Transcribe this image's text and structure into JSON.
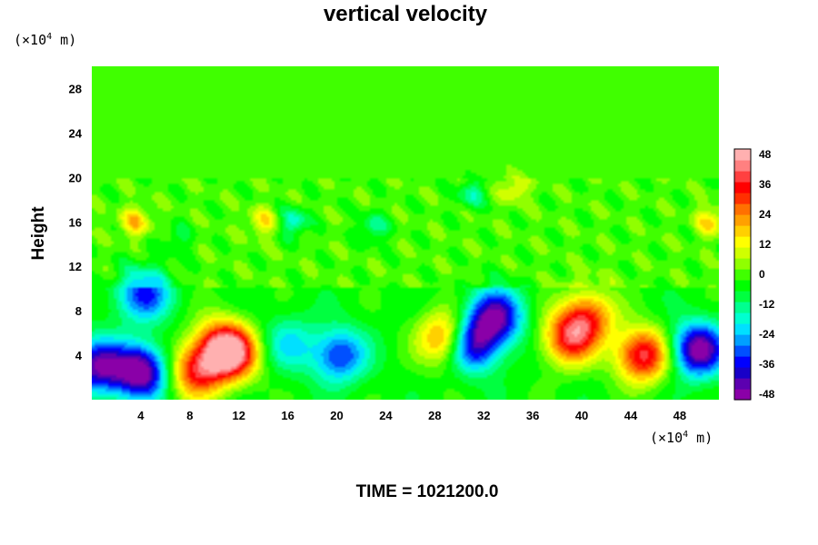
{
  "chart_data": {
    "type": "heatmap",
    "title": "vertical velocity",
    "ylabel": "Height",
    "y_unit": {
      "base": "(×10",
      "exp": "4",
      "rest": " m)"
    },
    "x_unit": {
      "base": "(×10",
      "exp": "4",
      "rest": " m)"
    },
    "xlim": [
      0,
      51.2
    ],
    "ylim": [
      0,
      30
    ],
    "x_ticks": [
      4,
      8,
      12,
      16,
      20,
      24,
      28,
      32,
      36,
      40,
      44,
      48
    ],
    "y_ticks": [
      4,
      8,
      12,
      16,
      20,
      24,
      28
    ],
    "colorbar": {
      "range": [
        -48,
        48
      ],
      "ticks": [
        48,
        36,
        24,
        12,
        0,
        -12,
        -24,
        -36,
        -48
      ]
    },
    "features": [
      {
        "x": 0.5,
        "y": 3.0,
        "value": -40
      },
      {
        "x": 4.0,
        "y": 2.5,
        "value": -48
      },
      {
        "x": 4.2,
        "y": 9.5,
        "value": -30
      },
      {
        "x": 8.5,
        "y": 2.5,
        "value": 36
      },
      {
        "x": 11.5,
        "y": 4.0,
        "value": 40
      },
      {
        "x": 10.5,
        "y": 5.0,
        "value": 30
      },
      {
        "x": 16.0,
        "y": 5.0,
        "value": -16
      },
      {
        "x": 20.2,
        "y": 4.0,
        "value": -30
      },
      {
        "x": 29.0,
        "y": 5.5,
        "value": 36
      },
      {
        "x": 31.0,
        "y": 5.0,
        "value": -44
      },
      {
        "x": 33.0,
        "y": 7.5,
        "value": -40
      },
      {
        "x": 39.0,
        "y": 5.5,
        "value": 36
      },
      {
        "x": 40.5,
        "y": 7.5,
        "value": 30
      },
      {
        "x": 45.0,
        "y": 4.0,
        "value": 44
      },
      {
        "x": 49.5,
        "y": 4.5,
        "value": -46
      },
      {
        "x": 3.5,
        "y": 16.0,
        "value": 18
      },
      {
        "x": 14.0,
        "y": 16.0,
        "value": 14
      },
      {
        "x": 16.5,
        "y": 16.0,
        "value": -18
      },
      {
        "x": 31.0,
        "y": 18.5,
        "value": -14
      },
      {
        "x": 34.5,
        "y": 19.0,
        "value": 12
      },
      {
        "x": 50.5,
        "y": 16.0,
        "value": 16
      },
      {
        "x": 23.0,
        "y": 15.5,
        "value": -14
      },
      {
        "x": 7.0,
        "y": 14.5,
        "value": -8
      }
    ],
    "grid": false,
    "legend": "colorbar-right"
  },
  "time_label": "TIME = 1021200.0"
}
